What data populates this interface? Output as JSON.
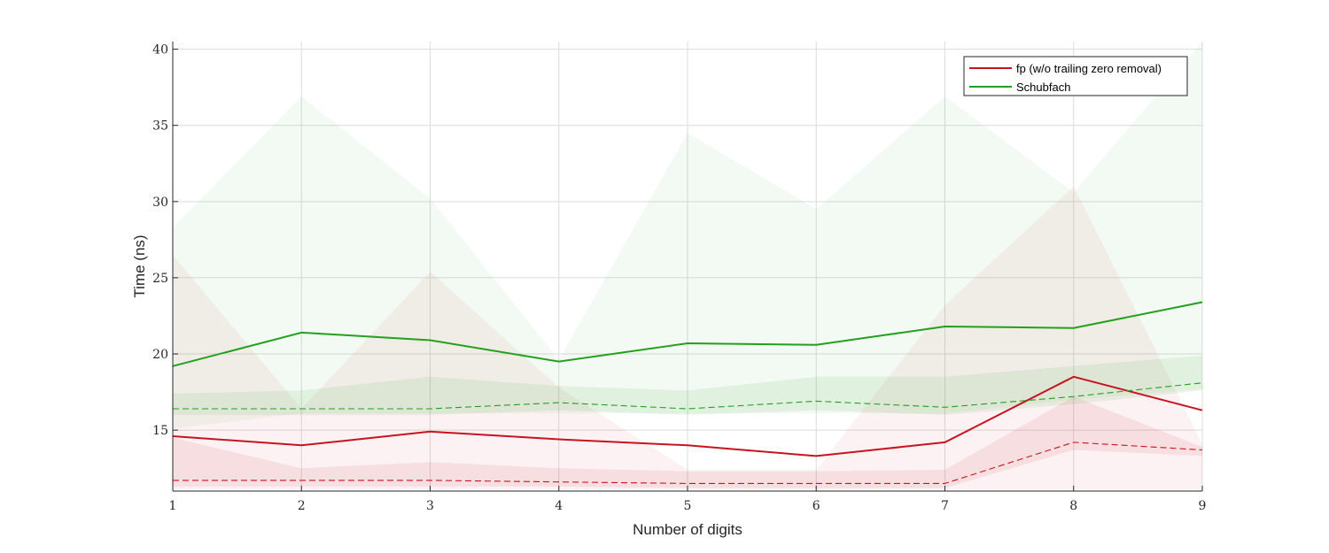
{
  "chart_data": {
    "type": "line",
    "xlabel": "Number of digits",
    "ylabel": "Time (ns)",
    "xlim": [
      1,
      9
    ],
    "ylim": [
      11,
      40.5
    ],
    "xticks": [
      1,
      2,
      3,
      4,
      5,
      6,
      7,
      8,
      9
    ],
    "yticks": [
      15,
      20,
      25,
      30,
      35,
      40
    ],
    "grid": true,
    "legend_position": "top-right",
    "x": [
      1,
      2,
      3,
      4,
      5,
      6,
      7,
      8,
      9
    ],
    "series": [
      {
        "name": "fp (w/o trailing zero removal)",
        "color": "#c8141e",
        "mean": [
          14.6,
          14.0,
          14.9,
          14.4,
          14.0,
          13.3,
          14.2,
          18.5,
          16.3
        ],
        "median": [
          11.7,
          11.7,
          11.7,
          11.6,
          11.5,
          11.5,
          11.5,
          14.2,
          13.7
        ],
        "outer_band": {
          "lower": [
            11.1,
            11.1,
            11.1,
            11.1,
            11.1,
            11.1,
            11.1,
            11.1,
            11.1
          ],
          "upper": [
            26.5,
            16.4,
            25.4,
            17.8,
            12.4,
            12.4,
            23.2,
            31.0,
            14.1
          ]
        },
        "inner_band": {
          "lower": [
            11.3,
            11.3,
            11.3,
            11.3,
            11.2,
            11.2,
            11.2,
            13.7,
            13.3
          ],
          "upper": [
            14.5,
            12.5,
            12.9,
            12.5,
            12.3,
            12.3,
            12.4,
            17.2,
            13.9
          ]
        },
        "in_legend": true
      },
      {
        "name": "Schubfach",
        "color": "#23a01e",
        "mean": [
          19.2,
          21.4,
          20.9,
          19.5,
          20.7,
          20.6,
          21.8,
          21.7,
          23.4
        ],
        "median": [
          16.4,
          16.4,
          16.4,
          16.8,
          16.4,
          16.9,
          16.5,
          17.2,
          18.1
        ],
        "outer_band": {
          "lower": [
            15.1,
            16.1,
            16.1,
            16.1,
            16.1,
            16.1,
            16.1,
            17.0,
            17.7
          ],
          "upper": [
            28.3,
            36.9,
            30.2,
            19.6,
            34.5,
            29.5,
            36.9,
            30.6,
            40.5
          ]
        },
        "inner_band": {
          "lower": [
            16.0,
            16.0,
            16.0,
            16.3,
            16.0,
            16.3,
            16.0,
            16.7,
            17.6
          ],
          "upper": [
            17.4,
            17.6,
            18.5,
            17.9,
            17.6,
            18.5,
            18.5,
            19.2,
            19.9
          ]
        },
        "in_legend": true
      }
    ],
    "legend": [
      {
        "label": "fp (w/o trailing zero removal)",
        "color": "#c8141e"
      },
      {
        "label": "Schubfach",
        "color": "#23a01e"
      }
    ]
  }
}
